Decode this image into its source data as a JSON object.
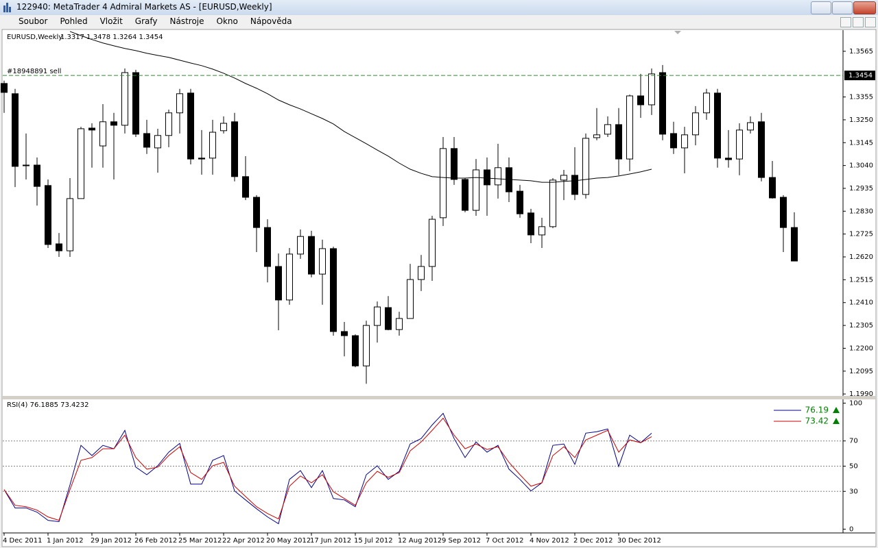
{
  "window": {
    "title": "122940: MetaTrader 4 Admiral Markets AS - [EURUSD,Weekly]"
  },
  "menu": [
    "Soubor",
    "Pohled",
    "Vložit",
    "Grafy",
    "Nástroje",
    "Okno",
    "Nápověda"
  ],
  "chart_data": [
    {
      "type": "candlestick",
      "title": "EURUSD,Weekly",
      "subtitle": "1.3317 1.3478 1.3264 1.3454",
      "categories": [
        "4 Dec 2011",
        null,
        null,
        null,
        "1 Jan 2012",
        null,
        null,
        null,
        "29 Jan 2012",
        null,
        null,
        null,
        "26 Feb 2012",
        null,
        null,
        null,
        "25 Mar 2012",
        null,
        null,
        null,
        "22 Apr 2012",
        null,
        null,
        null,
        "20 May 2012",
        null,
        null,
        null,
        "17 Jun 2012",
        null,
        null,
        null,
        "15 Jul 2012",
        null,
        null,
        null,
        "12 Aug 2012",
        null,
        null,
        null,
        "9 Sep 2012",
        null,
        null,
        null,
        "7 Oct 2012",
        null,
        null,
        null,
        "4 Nov 2012",
        null,
        null,
        null,
        "2 Dec 2012",
        null,
        null,
        null,
        "30 Dec 2012",
        null,
        null,
        null,
        null,
        null,
        null,
        null,
        null,
        null,
        null,
        null,
        null,
        null,
        null,
        null,
        null
      ],
      "open": [
        1.3417,
        1.337,
        1.3039,
        1.3042,
        1.2948,
        1.268,
        1.2648,
        1.2888,
        1.3212,
        1.313,
        1.3241,
        1.3225,
        1.3467,
        1.3187,
        1.3121,
        1.3178,
        1.3282,
        1.3373,
        1.3074,
        1.3074,
        1.32,
        1.3241,
        1.2989,
        1.2894,
        1.2755,
        1.2576,
        1.2422,
        1.2633,
        1.2714,
        1.2541,
        1.2658,
        1.2277,
        1.2258,
        1.2119,
        1.2305,
        1.2387,
        1.2286,
        1.2337,
        1.2516,
        1.2576,
        1.28,
        1.3118,
        1.2976,
        1.2834,
        1.302,
        1.2951,
        1.303,
        1.2922,
        1.2822,
        1.2721,
        1.2759,
        1.2973,
        1.2995,
        1.2907,
        1.3168,
        1.3184,
        1.3228,
        1.307,
        1.336,
        1.3319,
        1.3467,
        1.3187,
        1.3121,
        1.3181,
        1.3282,
        1.3373,
        1.3074,
        1.307,
        1.3203,
        1.3241,
        1.2985,
        1.2894,
        1.2755
      ],
      "high": [
        1.343,
        1.3392,
        1.3187,
        1.3077,
        1.2976,
        1.273,
        1.2982,
        1.3218,
        1.3234,
        1.3322,
        1.3282,
        1.3486,
        1.348,
        1.325,
        1.3209,
        1.3297,
        1.3392,
        1.3392,
        1.3203,
        1.325,
        1.3266,
        1.3282,
        1.3083,
        1.2904,
        1.2793,
        1.2636,
        1.2661,
        1.2746,
        1.274,
        1.2699,
        1.2667,
        1.2321,
        1.2264,
        1.2327,
        1.2415,
        1.244,
        1.2368,
        1.2588,
        1.2629,
        1.2809,
        1.3171,
        1.3171,
        1.2982,
        1.307,
        1.3077,
        1.314,
        1.3077,
        1.2951,
        1.2841,
        1.28,
        1.2982,
        1.302,
        1.3124,
        1.3187,
        1.3304,
        1.3266,
        1.3304,
        1.3366,
        1.3461,
        1.3486,
        1.3502,
        1.3241,
        1.3218,
        1.3313,
        1.3392,
        1.3392,
        1.3203,
        1.3234,
        1.3266,
        1.3282,
        1.3061,
        1.2904,
        1.2825
      ],
      "low": [
        1.3282,
        1.2941,
        1.2976,
        1.2856,
        1.2661,
        1.262,
        1.262,
        1.2888,
        1.303,
        1.303,
        1.2976,
        1.3187,
        1.3171,
        1.3093,
        1.3007,
        1.3124,
        1.3187,
        1.3045,
        1.2998,
        1.2998,
        1.3187,
        1.2967,
        1.2881,
        1.2642,
        1.2503,
        1.2283,
        1.24,
        1.2611,
        1.2526,
        1.24,
        1.2258,
        1.2163,
        1.2113,
        1.2037,
        1.2226,
        1.2283,
        1.2258,
        1.2337,
        1.2463,
        1.251,
        1.2762,
        1.2951,
        1.2825,
        1.2809,
        1.2809,
        1.2888,
        1.2872,
        1.28,
        1.2683,
        1.2661,
        1.2752,
        1.2881,
        1.2881,
        1.2888,
        1.3156,
        1.3171,
        1.2995,
        1.3014,
        1.3259,
        1.3272,
        1.3156,
        1.3093,
        1.3004,
        1.3133,
        1.325,
        1.303,
        1.303,
        1.2995,
        1.3187,
        1.2967,
        1.2888,
        1.2642,
        1.2601
      ],
      "close": [
        1.3376,
        1.3036,
        1.3042,
        1.2944,
        1.2677,
        1.2648,
        1.2888,
        1.3209,
        1.3203,
        1.3241,
        1.3225,
        1.3467,
        1.3184,
        1.3124,
        1.3178,
        1.3282,
        1.337,
        1.307,
        1.307,
        1.3193,
        1.3234,
        1.2989,
        1.2894,
        1.2755,
        1.2576,
        1.2422,
        1.2633,
        1.2714,
        1.2541,
        1.2658,
        1.2277,
        1.2258,
        1.2119,
        1.2305,
        1.239,
        1.2286,
        1.2337,
        1.2516,
        1.2576,
        1.2793,
        1.3118,
        1.2976,
        1.2834,
        1.302,
        1.2951,
        1.303,
        1.2919,
        1.2818,
        1.2721,
        1.2759,
        1.2973,
        1.2995,
        1.2907,
        1.3165,
        1.3181,
        1.3228,
        1.307,
        1.336,
        1.3319,
        1.3461,
        1.3184,
        1.3121,
        1.3181,
        1.3282,
        1.3373,
        1.3074,
        1.3067,
        1.3203,
        1.3237,
        1.2985,
        1.2891,
        1.2755,
        1.2601
      ],
      "up_color": "#ffffff",
      "down_color": "#000000",
      "wick_color": "#000000",
      "ma": {
        "color": "#000000",
        "values": [
          null,
          null,
          null,
          null,
          null,
          null,
          1.3656,
          1.3637,
          1.3619,
          1.3603,
          1.359,
          1.3578,
          1.3568,
          1.3556,
          1.3546,
          1.3537,
          1.3524,
          1.3511,
          1.3499,
          1.3483,
          1.3464,
          1.3442,
          1.3417,
          1.3395,
          1.337,
          1.3341,
          1.3319,
          1.33,
          1.3278,
          1.3256,
          1.3231,
          1.3196,
          1.3168,
          1.314,
          1.3111,
          1.3083,
          1.3051,
          1.3023,
          1.3004,
          1.2989,
          1.2985,
          1.2982,
          1.2982,
          1.2985,
          1.2982,
          1.2979,
          1.2976,
          1.2973,
          1.297,
          1.2963,
          1.2963,
          1.2967,
          1.297,
          1.2976,
          1.2982,
          1.2985,
          1.2992,
          1.3001,
          1.3011,
          1.3023,
          null,
          null,
          null,
          null,
          null,
          null,
          null,
          null,
          null,
          null,
          null,
          null,
          null
        ]
      },
      "level": {
        "label": "#18948891 sell",
        "value": 1.3454,
        "color": "#2e8b2e"
      },
      "ylim": [
        1.1981,
        1.3659
      ],
      "yticks": [
        1.3565,
        1.3355,
        {
          "value": 1.325,
          "label": "1.3250"
        },
        1.3145,
        {
          "value": 1.304,
          "label": "1.3040"
        },
        1.2935,
        {
          "value": 1.283,
          "label": "1.2830"
        },
        1.2725,
        {
          "value": 1.262,
          "label": "1.2620"
        },
        1.2515,
        {
          "value": 1.241,
          "label": "1.2410"
        },
        1.2305,
        {
          "value": 1.22,
          "label": "1.2200"
        },
        1.2095,
        {
          "value": 1.199,
          "label": "1.1990"
        }
      ]
    },
    {
      "type": "line",
      "title": "RSI(4) 76.1885 73.4232",
      "series": [
        {
          "color": "#00008b",
          "last_label": "76.19",
          "values": [
            31.4,
            16.8,
            16.8,
            13.5,
            7.0,
            5.9,
            35.1,
            66.5,
            58.4,
            66.5,
            63.8,
            78.4,
            49.2,
            43.2,
            50.3,
            61.1,
            68.1,
            35.7,
            35.7,
            54.6,
            58.4,
            30.3,
            23.2,
            16.2,
            9.7,
            4.3,
            39.5,
            46.5,
            33.0,
            46.5,
            24.3,
            23.2,
            17.8,
            43.2,
            50.3,
            39.5,
            45.9,
            67.6,
            71.9,
            82.7,
            91.9,
            71.9,
            56.8,
            69.2,
            61.1,
            66.5,
            47.6,
            39.5,
            30.3,
            36.8,
            66.5,
            67.6,
            51.4,
            76.2,
            77.3,
            79.5,
            49.7,
            74.6,
            68.6,
            76.1885,
            null,
            null,
            null,
            null,
            null,
            null,
            null,
            null,
            null,
            null,
            null,
            null,
            null
          ]
        },
        {
          "color": "#cc0000",
          "last_label": "73.42",
          "values": [
            31.4,
            18.9,
            17.8,
            15.1,
            9.7,
            7.0,
            31.4,
            54.6,
            56.8,
            63.8,
            63.8,
            74.6,
            56.8,
            47.6,
            49.2,
            58.4,
            65.4,
            44.9,
            39.5,
            50.3,
            53.0,
            34.1,
            25.9,
            17.8,
            12.4,
            8.1,
            34.1,
            42.2,
            36.8,
            43.2,
            29.7,
            24.3,
            18.9,
            36.8,
            45.9,
            41.1,
            44.9,
            62.2,
            69.2,
            78.4,
            88.1,
            74.6,
            63.8,
            67.6,
            63.2,
            65.4,
            53.0,
            43.2,
            34.1,
            36.8,
            58.4,
            65.4,
            56.8,
            70.8,
            74.6,
            78.4,
            61.1,
            70.8,
            68.6,
            73.4232,
            null,
            null,
            null,
            null,
            null,
            null,
            null,
            null,
            null,
            null,
            null,
            null,
            null
          ]
        }
      ],
      "legend": "top-right",
      "legend_color": "#008000",
      "levels": [
        70,
        50,
        30
      ],
      "ylim": [
        -3,
        103
      ],
      "yticks": [
        100,
        70,
        50,
        30,
        0
      ]
    }
  ]
}
